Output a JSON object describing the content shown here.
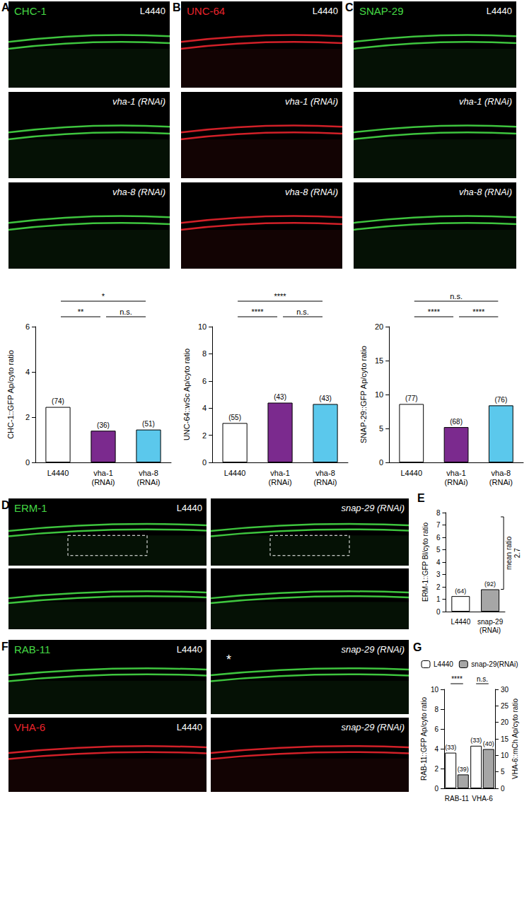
{
  "image_panels": [
    {
      "letter": "A",
      "cells": [
        {
          "label": "CHC-1",
          "condition": "L4440",
          "color": "#45d945"
        },
        {
          "condition": "vha-1 (RNAi)",
          "color": "#45d945"
        },
        {
          "condition": "vha-8 (RNAi)",
          "color": "#45d945"
        }
      ]
    },
    {
      "letter": "B",
      "cells": [
        {
          "label": "UNC-64",
          "condition": "L4440",
          "color": "#e8242c"
        },
        {
          "condition": "vha-1 (RNAi)",
          "color": "#e8242c"
        },
        {
          "condition": "vha-8 (RNAi)",
          "color": "#e8242c"
        }
      ]
    },
    {
      "letter": "C",
      "cells": [
        {
          "label": "SNAP-29",
          "condition": "L4440",
          "color": "#45d945"
        },
        {
          "condition": "vha-1 (RNAi)",
          "color": "#45d945"
        },
        {
          "condition": "vha-8 (RNAi)",
          "color": "#45d945"
        }
      ]
    },
    {
      "letter": "D",
      "cells": [
        {
          "label": "ERM-1",
          "condition": "L4440",
          "color": "#45d945"
        },
        {
          "condition": "snap-29 (RNAi)",
          "color": "#45d945"
        },
        {
          "color": "#45d945"
        },
        {
          "color": "#45d945"
        }
      ]
    },
    {
      "letter": "F",
      "cells": [
        {
          "label": "RAB-11",
          "condition": "L4440",
          "color": "#45d945"
        },
        {
          "condition": "snap-29 (RNAi)",
          "color": "#45d945",
          "annotation": "*"
        },
        {
          "label": "VHA-6",
          "condition": "L4440",
          "color": "#e8242c"
        },
        {
          "condition": "snap-29 (RNAi)",
          "color": "#e8242c"
        }
      ]
    }
  ],
  "chart_data": [
    {
      "type": "bar",
      "y_label": "CHC-1::GFP Ap/cyto ratio",
      "categories": [
        "L4440",
        "vha-1 (RNAi)",
        "vha-8 (RNAi)"
      ],
      "values": [
        2.45,
        1.4,
        1.45
      ],
      "colors": [
        "#ffffff",
        "#7b2a8e",
        "#5bc8ec"
      ],
      "n_labels": [
        "(74)",
        "(36)",
        "(51)"
      ],
      "ylim": [
        0,
        6
      ],
      "yticks": [
        0,
        2,
        4,
        6
      ],
      "comparisons": [
        {
          "from": 0,
          "to": 1,
          "label": "**"
        },
        {
          "from": 1,
          "to": 2,
          "label": "n.s."
        },
        {
          "from": 0,
          "to": 2,
          "label": "*"
        }
      ]
    },
    {
      "type": "bar",
      "y_label": "UNC-64::wSc Ap/cyto ratio",
      "categories": [
        "L4440",
        "vha-1 (RNAi)",
        "vha-8 (RNAi)"
      ],
      "values": [
        2.9,
        4.4,
        4.3
      ],
      "colors": [
        "#ffffff",
        "#7b2a8e",
        "#5bc8ec"
      ],
      "n_labels": [
        "(55)",
        "(43)",
        "(43)"
      ],
      "ylim": [
        0,
        10
      ],
      "yticks": [
        0,
        2,
        4,
        6,
        8,
        10
      ],
      "comparisons": [
        {
          "from": 0,
          "to": 1,
          "label": "****"
        },
        {
          "from": 1,
          "to": 2,
          "label": "n.s."
        },
        {
          "from": 0,
          "to": 2,
          "label": "****"
        }
      ]
    },
    {
      "type": "bar",
      "y_label": "SNAP-29::GFP Ap/cyto ratio",
      "categories": [
        "L4440",
        "vha-1 (RNAi)",
        "vha-8 (RNAi)"
      ],
      "values": [
        8.6,
        5.2,
        8.4
      ],
      "colors": [
        "#ffffff",
        "#7b2a8e",
        "#5bc8ec"
      ],
      "n_labels": [
        "(77)",
        "(68)",
        "(76)"
      ],
      "ylim": [
        0,
        20
      ],
      "yticks": [
        0,
        5,
        10,
        15,
        20
      ],
      "comparisons": [
        {
          "from": 0,
          "to": 1,
          "label": "****"
        },
        {
          "from": 1,
          "to": 2,
          "label": "****"
        },
        {
          "from": 0,
          "to": 2,
          "label": "n.s."
        }
      ]
    },
    {
      "type": "bar",
      "letter": "E",
      "y_label": "ERM-1::GFP Bl/cyto ratio",
      "categories": [
        "L4440",
        "snap-29 (RNAi)"
      ],
      "values": [
        1.25,
        1.8
      ],
      "colors": [
        "#ffffff",
        "#a6a6a6"
      ],
      "n_labels": [
        "(64)",
        "(92)"
      ],
      "ylim": [
        0,
        8
      ],
      "yticks": [
        0,
        1,
        2,
        3,
        4,
        5,
        6,
        7,
        8
      ],
      "annotations": [
        "mean ratio",
        "2.7"
      ]
    },
    {
      "type": "bar",
      "letter": "G",
      "y_label": "RAB-11::GFP Ap/cyto ratio",
      "y2_label": "VHA-6::mCh Ap/cyto ratio",
      "categories": [
        "RAB-11",
        "VHA-6"
      ],
      "ylim": [
        0,
        10
      ],
      "yticks": [
        0,
        2,
        4,
        6,
        8,
        10
      ],
      "y2lim": [
        0,
        30
      ],
      "y2ticks": [
        0,
        5,
        10,
        15,
        20,
        25,
        30
      ],
      "legend": "top",
      "series": [
        {
          "name": "L4440",
          "color": "#ffffff",
          "values": [
            3.6,
            null
          ],
          "n_labels": [
            "(33)",
            null
          ]
        },
        {
          "name": "snap-29(RNAi)",
          "color": "#a6a6a6",
          "values": [
            1.4,
            null
          ],
          "n_labels": [
            "(39)",
            null
          ]
        },
        {
          "name": "L4440",
          "color": "#ffffff",
          "axis": "y2",
          "values": [
            null,
            12.9
          ],
          "n_labels": [
            null,
            "(33)"
          ]
        },
        {
          "name": "snap-29(RNAi)",
          "color": "#a6a6a6",
          "axis": "y2",
          "values": [
            null,
            11.9
          ],
          "n_labels": [
            null,
            "(40)"
          ]
        }
      ],
      "comparisons": [
        {
          "category": 0,
          "label": "****"
        },
        {
          "category": 1,
          "label": "n.s."
        }
      ]
    }
  ]
}
